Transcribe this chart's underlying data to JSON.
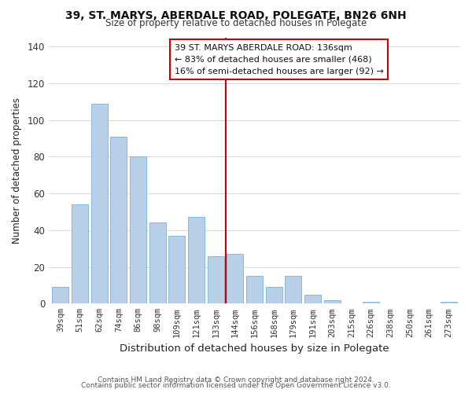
{
  "title": "39, ST. MARYS, ABERDALE ROAD, POLEGATE, BN26 6NH",
  "subtitle": "Size of property relative to detached houses in Polegate",
  "xlabel": "Distribution of detached houses by size in Polegate",
  "ylabel": "Number of detached properties",
  "categories": [
    "39sqm",
    "51sqm",
    "62sqm",
    "74sqm",
    "86sqm",
    "98sqm",
    "109sqm",
    "121sqm",
    "133sqm",
    "144sqm",
    "156sqm",
    "168sqm",
    "179sqm",
    "191sqm",
    "203sqm",
    "215sqm",
    "226sqm",
    "238sqm",
    "250sqm",
    "261sqm",
    "273sqm"
  ],
  "values": [
    9,
    54,
    109,
    91,
    80,
    44,
    37,
    47,
    26,
    27,
    15,
    9,
    15,
    5,
    2,
    0,
    1,
    0,
    0,
    0,
    1
  ],
  "bar_color": "#b8d0e8",
  "bar_edgecolor": "#7ab0d4",
  "vline_color": "#cc0000",
  "annotation_line0": "39 ST. MARYS ABERDALE ROAD: 136sqm",
  "annotation_line1": "← 83% of detached houses are smaller (468)",
  "annotation_line2": "16% of semi-detached houses are larger (92) →",
  "annotation_box_edgecolor": "#cc0000",
  "ylim": [
    0,
    145
  ],
  "yticks": [
    0,
    20,
    40,
    60,
    80,
    100,
    120,
    140
  ],
  "footer1": "Contains HM Land Registry data © Crown copyright and database right 2024.",
  "footer2": "Contains public sector information licensed under the Open Government Licence v3.0.",
  "background_color": "#ffffff",
  "grid_color": "#d8d8d8"
}
